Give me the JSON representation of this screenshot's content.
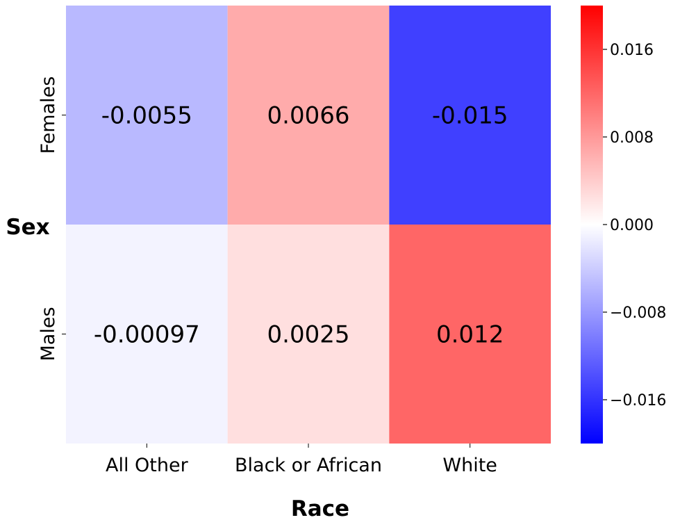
{
  "chart_data": {
    "type": "heatmap",
    "xlabel": "Race",
    "ylabel": "Sex",
    "x_categories": [
      "All Other",
      "Black or African",
      "White"
    ],
    "y_categories": [
      "Females",
      "Males"
    ],
    "values": [
      [
        -0.0055,
        0.0066,
        -0.015
      ],
      [
        -0.00097,
        0.0025,
        0.012
      ]
    ],
    "value_labels": [
      [
        "-0.0055",
        "0.0066",
        "-0.015"
      ],
      [
        "-0.00097",
        "0.0025",
        "0.012"
      ]
    ],
    "colorscale": {
      "name": "bwr",
      "min": -0.02,
      "max": 0.02,
      "low_color": "#0000ff",
      "mid_color": "#ffffff",
      "high_color": "#ff0000",
      "ticks": [
        0.016,
        0.008,
        0.0,
        -0.008,
        -0.016
      ],
      "tick_labels": [
        "0.016",
        "0.008",
        "0.000",
        "−0.008",
        "−0.016"
      ]
    }
  }
}
